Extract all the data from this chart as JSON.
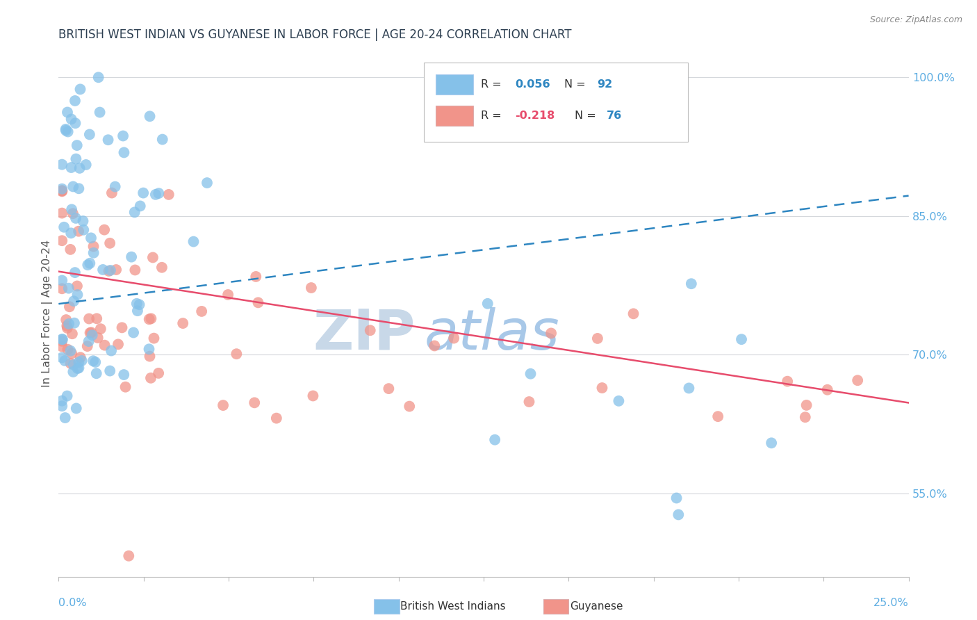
{
  "title": "BRITISH WEST INDIAN VS GUYANESE IN LABOR FORCE | AGE 20-24 CORRELATION CHART",
  "source": "Source: ZipAtlas.com",
  "ylabel": "In Labor Force | Age 20-24",
  "x_min": 0.0,
  "x_max": 0.25,
  "y_min": 0.46,
  "y_max": 1.03,
  "right_yticks": [
    0.55,
    0.7,
    0.85,
    1.0
  ],
  "right_yticklabels": [
    "55.0%",
    "70.0%",
    "85.0%",
    "100.0%"
  ],
  "blue_color": "#85c1e9",
  "pink_color": "#f1948a",
  "blue_line_color": "#2e86c1",
  "pink_line_color": "#e74c6c",
  "blue_R": 0.056,
  "blue_N": 92,
  "pink_R": -0.218,
  "pink_N": 76,
  "watermark_zip": "ZIP",
  "watermark_atlas": "atlas",
  "watermark_zip_color": "#c8d8e8",
  "watermark_atlas_color": "#a8c8e8",
  "legend_R_color_blue": "#2e86c1",
  "legend_R_color_pink": "#e74c6c",
  "legend_N_color": "#2e86c1",
  "grid_color": "#d5d8dc",
  "bg_color": "#ffffff",
  "title_color": "#2c3e50",
  "axis_color": "#5dade2",
  "blue_line_y0": 0.755,
  "blue_line_y1": 0.872,
  "pink_line_y0": 0.79,
  "pink_line_y1": 0.648
}
